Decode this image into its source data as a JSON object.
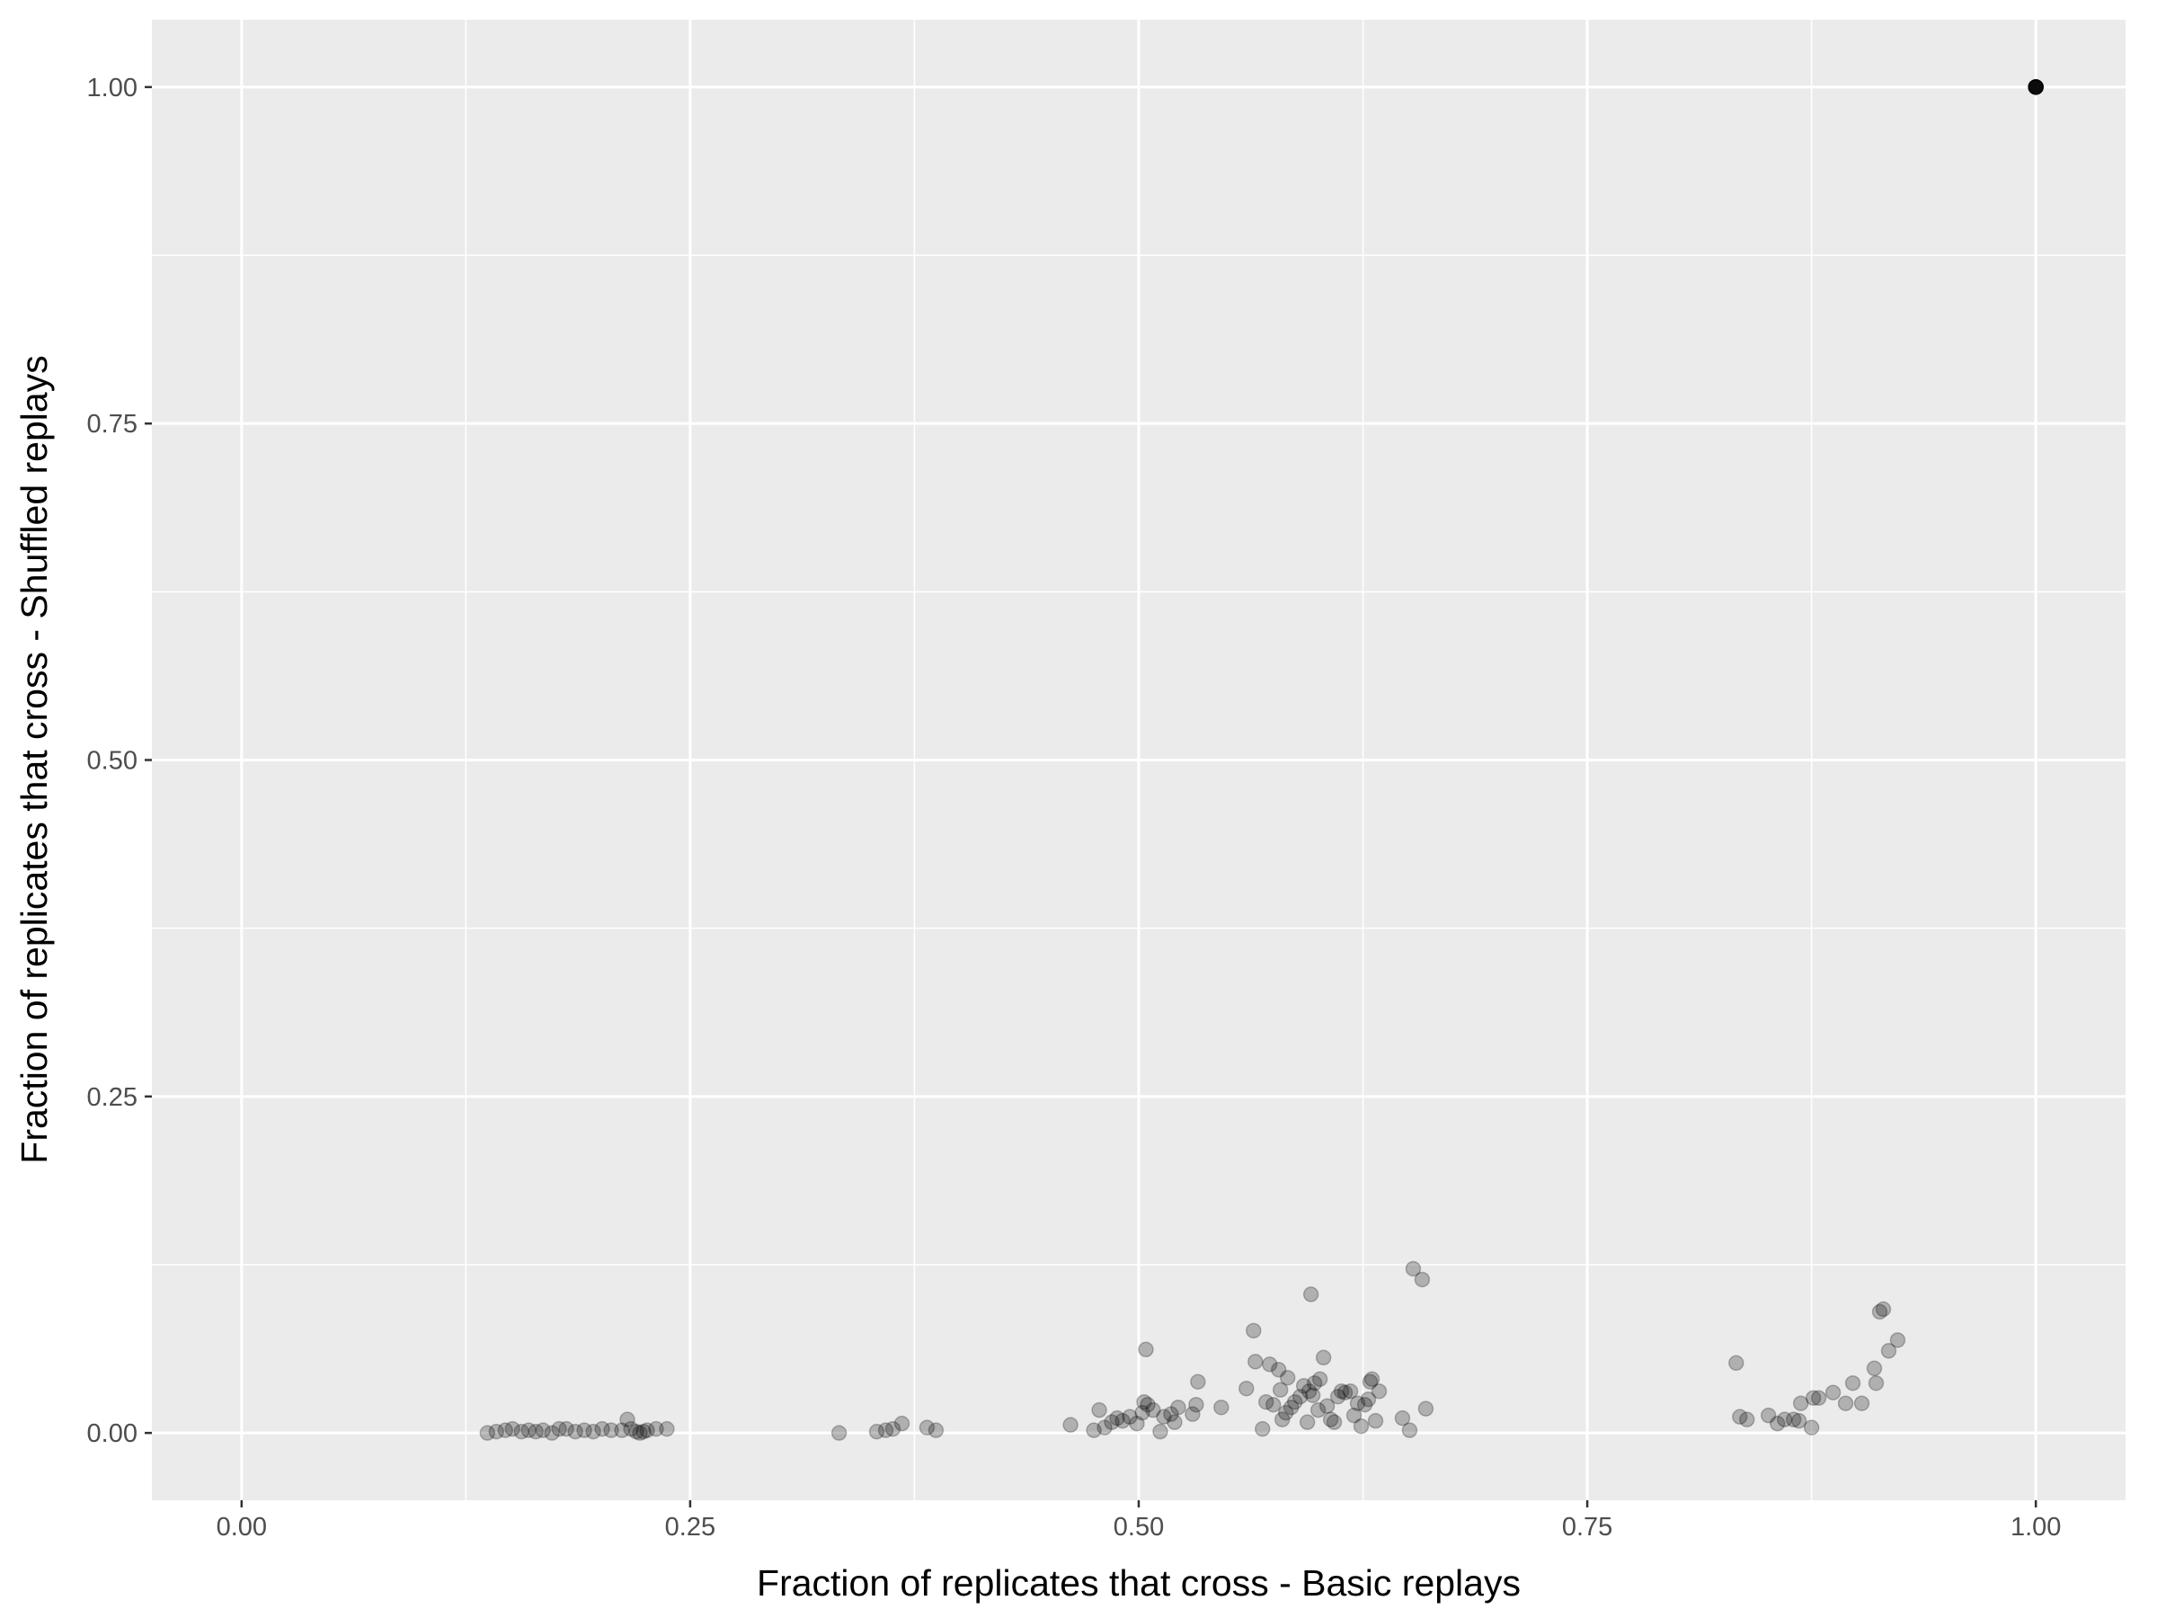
{
  "chart_data": {
    "type": "scatter",
    "title": "",
    "xlabel": "Fraction of replicates that cross - Basic replays",
    "ylabel": "Fraction of replicates that cross - Shuffled replays",
    "xlim": [
      -0.05,
      1.05
    ],
    "ylim": [
      -0.05,
      1.05
    ],
    "x_ticks": [
      0.0,
      0.25,
      0.5,
      0.75,
      1.0
    ],
    "x_tick_labels": [
      "0.00",
      "0.25",
      "0.50",
      "0.75",
      "1.00"
    ],
    "y_ticks": [
      0.0,
      0.25,
      0.5,
      0.75,
      1.0
    ],
    "y_tick_labels": [
      "0.00",
      "0.25",
      "0.50",
      "0.75",
      "1.00"
    ],
    "grid": true,
    "colors": {
      "panel": "#ebebeb",
      "grid": "#ffffff",
      "point": "#000000"
    },
    "point_alpha": 0.25,
    "points": [
      [
        0.137,
        0.0
      ],
      [
        0.142,
        0.001
      ],
      [
        0.147,
        0.002
      ],
      [
        0.151,
        0.003
      ],
      [
        0.156,
        0.001
      ],
      [
        0.16,
        0.002
      ],
      [
        0.164,
        0.001
      ],
      [
        0.168,
        0.002
      ],
      [
        0.173,
        0.0
      ],
      [
        0.177,
        0.003
      ],
      [
        0.181,
        0.003
      ],
      [
        0.186,
        0.001
      ],
      [
        0.191,
        0.002
      ],
      [
        0.196,
        0.001
      ],
      [
        0.201,
        0.003
      ],
      [
        0.206,
        0.002
      ],
      [
        0.212,
        0.002
      ],
      [
        0.215,
        0.01
      ],
      [
        0.217,
        0.003
      ],
      [
        0.22,
        0.001
      ],
      [
        0.222,
        0.0
      ],
      [
        0.224,
        0.001
      ],
      [
        0.226,
        0.002
      ],
      [
        0.231,
        0.003
      ],
      [
        0.237,
        0.003
      ],
      [
        0.333,
        0.0
      ],
      [
        0.354,
        0.001
      ],
      [
        0.359,
        0.002
      ],
      [
        0.363,
        0.003
      ],
      [
        0.368,
        0.007
      ],
      [
        0.382,
        0.004
      ],
      [
        0.387,
        0.002
      ],
      [
        0.462,
        0.006
      ],
      [
        0.475,
        0.002
      ],
      [
        0.478,
        0.017
      ],
      [
        0.481,
        0.004
      ],
      [
        0.485,
        0.008
      ],
      [
        0.488,
        0.011
      ],
      [
        0.491,
        0.009
      ],
      [
        0.495,
        0.012
      ],
      [
        0.499,
        0.007
      ],
      [
        0.502,
        0.015
      ],
      [
        0.503,
        0.023
      ],
      [
        0.504,
        0.062
      ],
      [
        0.505,
        0.021
      ],
      [
        0.508,
        0.017
      ],
      [
        0.512,
        0.001
      ],
      [
        0.514,
        0.012
      ],
      [
        0.518,
        0.014
      ],
      [
        0.52,
        0.008
      ],
      [
        0.522,
        0.019
      ],
      [
        0.53,
        0.014
      ],
      [
        0.532,
        0.021
      ],
      [
        0.533,
        0.038
      ],
      [
        0.546,
        0.019
      ],
      [
        0.56,
        0.033
      ],
      [
        0.564,
        0.076
      ],
      [
        0.565,
        0.053
      ],
      [
        0.569,
        0.003
      ],
      [
        0.571,
        0.023
      ],
      [
        0.573,
        0.051
      ],
      [
        0.575,
        0.021
      ],
      [
        0.578,
        0.047
      ],
      [
        0.579,
        0.032
      ],
      [
        0.58,
        0.01
      ],
      [
        0.582,
        0.015
      ],
      [
        0.583,
        0.041
      ],
      [
        0.585,
        0.019
      ],
      [
        0.587,
        0.023
      ],
      [
        0.59,
        0.027
      ],
      [
        0.592,
        0.035
      ],
      [
        0.594,
        0.008
      ],
      [
        0.595,
        0.031
      ],
      [
        0.596,
        0.103
      ],
      [
        0.597,
        0.028
      ],
      [
        0.598,
        0.037
      ],
      [
        0.6,
        0.017
      ],
      [
        0.601,
        0.04
      ],
      [
        0.603,
        0.056
      ],
      [
        0.605,
        0.02
      ],
      [
        0.607,
        0.01
      ],
      [
        0.609,
        0.008
      ],
      [
        0.611,
        0.027
      ],
      [
        0.613,
        0.031
      ],
      [
        0.615,
        0.03
      ],
      [
        0.618,
        0.031
      ],
      [
        0.62,
        0.013
      ],
      [
        0.622,
        0.022
      ],
      [
        0.624,
        0.005
      ],
      [
        0.626,
        0.021
      ],
      [
        0.628,
        0.025
      ],
      [
        0.629,
        0.038
      ],
      [
        0.63,
        0.04
      ],
      [
        0.632,
        0.009
      ],
      [
        0.634,
        0.031
      ],
      [
        0.647,
        0.011
      ],
      [
        0.651,
        0.002
      ],
      [
        0.653,
        0.122
      ],
      [
        0.658,
        0.114
      ],
      [
        0.66,
        0.018
      ],
      [
        0.833,
        0.052
      ],
      [
        0.835,
        0.012
      ],
      [
        0.839,
        0.01
      ],
      [
        0.851,
        0.013
      ],
      [
        0.856,
        0.007
      ],
      [
        0.86,
        0.01
      ],
      [
        0.865,
        0.01
      ],
      [
        0.868,
        0.009
      ],
      [
        0.869,
        0.022
      ],
      [
        0.875,
        0.004
      ],
      [
        0.876,
        0.026
      ],
      [
        0.879,
        0.026
      ],
      [
        0.887,
        0.03
      ],
      [
        0.894,
        0.022
      ],
      [
        0.898,
        0.037
      ],
      [
        0.903,
        0.022
      ],
      [
        0.91,
        0.048
      ],
      [
        0.911,
        0.037
      ],
      [
        0.913,
        0.09
      ],
      [
        0.915,
        0.092
      ],
      [
        0.918,
        0.061
      ],
      [
        0.923,
        0.069
      ],
      [
        1.0,
        1.0
      ],
      [
        1.0,
        1.0
      ],
      [
        1.0,
        1.0
      ],
      [
        1.0,
        1.0
      ],
      [
        1.0,
        1.0
      ],
      [
        1.0,
        1.0
      ],
      [
        1.0,
        1.0
      ],
      [
        1.0,
        1.0
      ],
      [
        1.0,
        1.0
      ],
      [
        1.0,
        1.0
      ]
    ]
  }
}
